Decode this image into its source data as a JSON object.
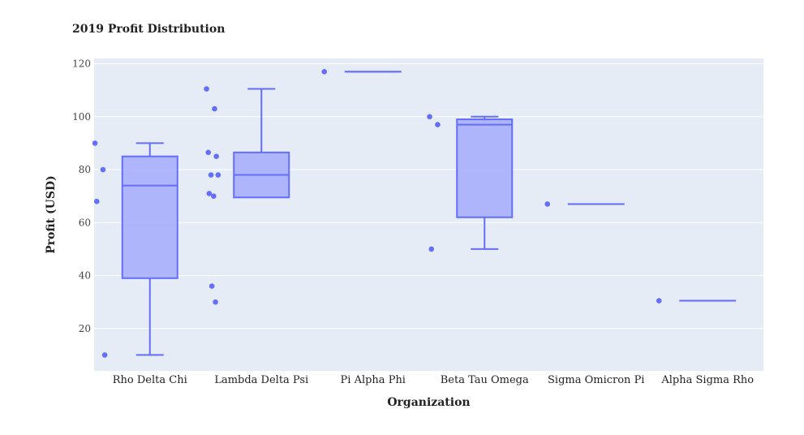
{
  "chart_data": {
    "type": "box",
    "title": "2019 Profit Distribution",
    "xlabel": "Organization",
    "ylabel": "Profit (USD)",
    "ylim": [
      4,
      122
    ],
    "yticks": [
      20,
      40,
      60,
      80,
      100,
      120
    ],
    "grid": true,
    "legend": "none",
    "colors": {
      "box": "#636efa",
      "box_fill": "#a5acfc",
      "plot_bg": "#e5ecf6",
      "grid": "#ffffff",
      "text": "#2a3f5f"
    },
    "categories": [
      "Rho Delta Chi",
      "Lambda Delta Psi",
      "Pi Alpha Phi",
      "Beta Tau Omega",
      "Sigma Omicron Pi",
      "Alpha Sigma Rho"
    ],
    "boxes": [
      {
        "category": "Rho Delta Chi",
        "min": 10,
        "q1": 39,
        "median": 74,
        "q3": 85,
        "max": 90,
        "points": [
          90,
          80,
          68,
          10
        ]
      },
      {
        "category": "Lambda Delta Psi",
        "min": 69.5,
        "q1": 69.5,
        "median": 78,
        "q3": 86.5,
        "max": 110.5,
        "points": [
          110.5,
          103,
          86.5,
          85,
          78,
          78,
          71,
          70,
          36,
          30
        ]
      },
      {
        "category": "Pi Alpha Phi",
        "min": 117,
        "q1": 117,
        "median": 117,
        "q3": 117,
        "max": 117,
        "points": [
          117
        ]
      },
      {
        "category": "Beta Tau Omega",
        "min": 50,
        "q1": 62,
        "median": 97,
        "q3": 99,
        "max": 100,
        "points": [
          100,
          97,
          50
        ]
      },
      {
        "category": "Sigma Omicron Pi",
        "min": 67,
        "q1": 67,
        "median": 67,
        "q3": 67,
        "max": 67,
        "points": [
          67
        ]
      },
      {
        "category": "Alpha Sigma Rho",
        "min": 30.5,
        "q1": 30.5,
        "median": 30.5,
        "q3": 30.5,
        "max": 30.5,
        "points": [
          30.5
        ]
      }
    ]
  }
}
